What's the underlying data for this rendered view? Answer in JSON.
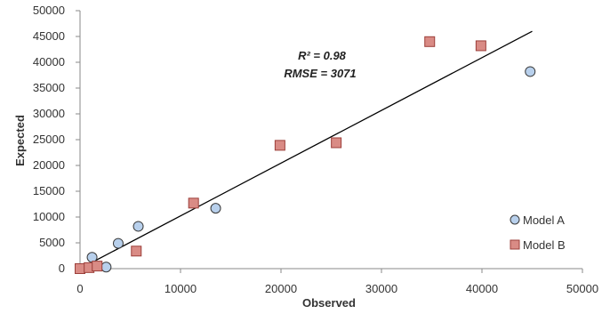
{
  "chart_data": {
    "type": "scatter",
    "xlabel": "Observed",
    "ylabel": "Expected",
    "xlim": [
      0,
      50000
    ],
    "ylim": [
      0,
      50000
    ],
    "x_ticks": [
      "0",
      "10000",
      "20000",
      "30000",
      "40000",
      "50000"
    ],
    "y_ticks": [
      "0",
      "5000",
      "10000",
      "15000",
      "20000",
      "25000",
      "30000",
      "35000",
      "40000",
      "45000",
      "50000"
    ],
    "grid": false,
    "legend_position": "bottom-right",
    "annotations": {
      "r2": "R² = 0.98",
      "rmse": "RMSE = 3071"
    },
    "trendline": {
      "x": [
        0,
        45000
      ],
      "y": [
        0,
        46000
      ],
      "color": "#000000"
    },
    "series": [
      {
        "name": "Model A",
        "marker": "circle",
        "color": "#b8d0ec",
        "stroke": "#3a3a3a",
        "points": [
          {
            "x": 0,
            "y": 0
          },
          {
            "x": 1200,
            "y": 2200
          },
          {
            "x": 2600,
            "y": 300
          },
          {
            "x": 3800,
            "y": 4900
          },
          {
            "x": 5800,
            "y": 8200
          },
          {
            "x": 13500,
            "y": 11700
          },
          {
            "x": 44800,
            "y": 38200
          }
        ]
      },
      {
        "name": "Model B",
        "marker": "square",
        "color": "#d98b85",
        "stroke": "#9c3f3a",
        "points": [
          {
            "x": 0,
            "y": 0
          },
          {
            "x": 900,
            "y": 200
          },
          {
            "x": 1700,
            "y": 500
          },
          {
            "x": 5600,
            "y": 3400
          },
          {
            "x": 11300,
            "y": 12700
          },
          {
            "x": 19900,
            "y": 23900
          },
          {
            "x": 25500,
            "y": 24400
          },
          {
            "x": 34800,
            "y": 44000
          },
          {
            "x": 39900,
            "y": 43200
          }
        ]
      }
    ]
  }
}
